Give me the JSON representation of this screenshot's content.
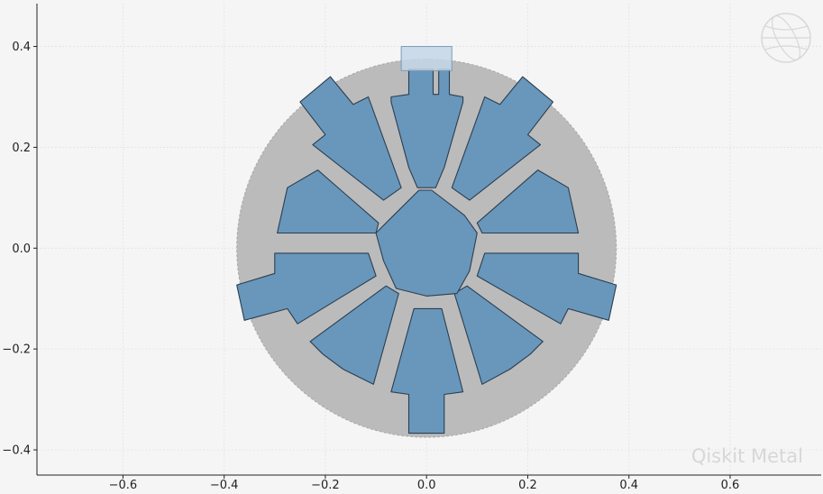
{
  "chart_data": {
    "type": "layout",
    "title": "",
    "xlabel": "",
    "ylabel": "",
    "xlim": [
      -0.77,
      0.78
    ],
    "ylim": [
      -0.45,
      0.485
    ],
    "x_ticks": [
      -0.6,
      -0.4,
      -0.2,
      0.0,
      0.2,
      0.4,
      0.6
    ],
    "x_tick_labels": [
      "−0.6",
      "−0.4",
      "−0.2",
      "0.0",
      "0.2",
      "0.4",
      "0.6"
    ],
    "y_ticks": [
      0.4,
      0.2,
      0.0,
      -0.2,
      -0.4
    ],
    "y_tick_labels": [
      "0.4",
      "0.2",
      "0.0",
      "−0.2",
      "−0.4"
    ],
    "grid": true,
    "colors": {
      "background": "#f5f5f5",
      "ground_pocket": "#bbbbbb",
      "metal": "#6897bb",
      "metal_edge": "#2c3e50",
      "pin": "#c4d6e6",
      "watermark": "#d7d7d7"
    },
    "shapes": [
      {
        "name": "ground-pocket",
        "type": "circle",
        "center": [
          0.0,
          0.0
        ],
        "radius": 0.375,
        "role": "ground"
      },
      {
        "name": "pad-top",
        "type": "polygon",
        "role": "metal",
        "points": [
          [
            -0.035,
            0.355
          ],
          [
            -0.035,
            0.305
          ],
          [
            -0.07,
            0.3
          ],
          [
            -0.07,
            0.29
          ],
          [
            -0.035,
            0.16
          ],
          [
            -0.018,
            0.12
          ],
          [
            0.018,
            0.12
          ],
          [
            0.035,
            0.16
          ],
          [
            0.072,
            0.29
          ],
          [
            0.072,
            0.3
          ],
          [
            0.045,
            0.305
          ],
          [
            0.045,
            0.355
          ],
          [
            0.024,
            0.355
          ],
          [
            0.024,
            0.305
          ],
          [
            0.013,
            0.305
          ],
          [
            0.013,
            0.355
          ]
        ]
      },
      {
        "name": "pad-bottom",
        "type": "polygon",
        "role": "metal",
        "points": [
          [
            -0.035,
            -0.367
          ],
          [
            -0.035,
            -0.29
          ],
          [
            -0.07,
            -0.285
          ],
          [
            -0.025,
            -0.12
          ],
          [
            0.03,
            -0.12
          ],
          [
            0.072,
            -0.285
          ],
          [
            0.035,
            -0.29
          ],
          [
            0.035,
            -0.367
          ]
        ]
      },
      {
        "name": "pad-upper-left",
        "type": "polygon",
        "role": "metal",
        "points": [
          [
            -0.25,
            0.29
          ],
          [
            -0.19,
            0.34
          ],
          [
            -0.145,
            0.285
          ],
          [
            -0.115,
            0.3
          ],
          [
            -0.05,
            0.12
          ],
          [
            -0.085,
            0.095
          ],
          [
            -0.225,
            0.205
          ],
          [
            -0.2,
            0.225
          ]
        ]
      },
      {
        "name": "pad-upper-right",
        "type": "polygon",
        "role": "metal",
        "points": [
          [
            0.25,
            0.29
          ],
          [
            0.19,
            0.34
          ],
          [
            0.145,
            0.285
          ],
          [
            0.115,
            0.3
          ],
          [
            0.05,
            0.12
          ],
          [
            0.085,
            0.095
          ],
          [
            0.225,
            0.205
          ],
          [
            0.2,
            0.225
          ]
        ]
      },
      {
        "name": "pad-left",
        "type": "polygon",
        "role": "metal",
        "points": [
          [
            -0.295,
            0.03
          ],
          [
            -0.1,
            0.03
          ],
          [
            -0.095,
            0.05
          ],
          [
            -0.215,
            0.155
          ],
          [
            -0.275,
            0.12
          ]
        ]
      },
      {
        "name": "pad-right",
        "type": "polygon",
        "role": "metal",
        "points": [
          [
            0.3,
            0.03
          ],
          [
            0.11,
            0.03
          ],
          [
            0.1,
            0.05
          ],
          [
            0.22,
            0.155
          ],
          [
            0.28,
            0.12
          ]
        ]
      },
      {
        "name": "pad-lower-left",
        "type": "polygon",
        "role": "metal",
        "points": [
          [
            -0.36,
            -0.143
          ],
          [
            -0.375,
            -0.073
          ],
          [
            -0.3,
            -0.05
          ],
          [
            -0.3,
            -0.01
          ],
          [
            -0.115,
            -0.01
          ],
          [
            -0.1,
            -0.055
          ],
          [
            -0.255,
            -0.15
          ],
          [
            -0.275,
            -0.12
          ]
        ]
      },
      {
        "name": "pad-lower-right",
        "type": "polygon",
        "role": "metal",
        "points": [
          [
            0.36,
            -0.143
          ],
          [
            0.375,
            -0.073
          ],
          [
            0.3,
            -0.05
          ],
          [
            0.3,
            -0.01
          ],
          [
            0.115,
            -0.01
          ],
          [
            0.1,
            -0.055
          ],
          [
            0.265,
            -0.15
          ],
          [
            0.28,
            -0.12
          ]
        ]
      },
      {
        "name": "pad-bottom-left",
        "type": "polygon",
        "role": "metal",
        "points": [
          [
            -0.23,
            -0.185
          ],
          [
            -0.08,
            -0.075
          ],
          [
            -0.055,
            -0.09
          ],
          [
            -0.105,
            -0.27
          ],
          [
            -0.165,
            -0.24
          ],
          [
            -0.205,
            -0.21
          ]
        ]
      },
      {
        "name": "pad-bottom-right",
        "type": "polygon",
        "role": "metal",
        "points": [
          [
            0.23,
            -0.185
          ],
          [
            0.08,
            -0.075
          ],
          [
            0.055,
            -0.09
          ],
          [
            0.11,
            -0.27
          ],
          [
            0.165,
            -0.24
          ],
          [
            0.205,
            -0.21
          ]
        ]
      },
      {
        "name": "center-island",
        "type": "polygon",
        "role": "metal",
        "points": [
          [
            -0.07,
            0.06
          ],
          [
            -0.1,
            0.03
          ],
          [
            -0.085,
            -0.025
          ],
          [
            -0.06,
            -0.08
          ],
          [
            0.0,
            -0.095
          ],
          [
            0.06,
            -0.09
          ],
          [
            0.085,
            -0.045
          ],
          [
            0.1,
            0.03
          ],
          [
            0.075,
            0.065
          ],
          [
            0.01,
            0.115
          ],
          [
            -0.015,
            0.115
          ]
        ]
      },
      {
        "name": "connection-pin",
        "type": "rect",
        "role": "pin",
        "x": -0.05,
        "y": 0.352,
        "width": 0.1,
        "height": 0.048
      }
    ],
    "watermark_text": "Qiskit Metal"
  }
}
